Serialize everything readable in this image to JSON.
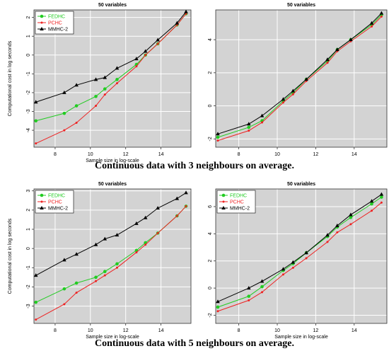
{
  "captions": {
    "top": "Continuous data with 3 neighbours on average.",
    "bottom": "Continuous data with 5 neighbours on average."
  },
  "styles": {
    "FEDHC": {
      "color": "#22cc22",
      "marker": "circle"
    },
    "PCHC": {
      "color": "#ee2222",
      "marker": "dot"
    },
    "MMHC-2": {
      "color": "#000000",
      "marker": "triangle"
    },
    "panel_bg": "#d3d3d3",
    "grid": "#ffffff"
  },
  "chart_data": [
    {
      "type": "line",
      "title": "50 variables",
      "xlabel": "Sample size in log-scale",
      "ylabel": "Computational cost in log seconds",
      "xlim": [
        6.8,
        15.7
      ],
      "ylim": [
        -4.9,
        2.4
      ],
      "xticks": [
        8,
        10,
        12,
        14
      ],
      "yticks": [
        -4,
        -3,
        -2,
        -1,
        0,
        1,
        2
      ],
      "legend": "top-left",
      "grid": true,
      "x": [
        6.91,
        8.52,
        9.21,
        10.31,
        10.82,
        11.51,
        12.61,
        13.12,
        13.82,
        14.91,
        15.42
      ],
      "series": [
        {
          "name": "FEDHC",
          "values": [
            -3.5,
            -3.1,
            -2.7,
            -2.2,
            -1.8,
            -1.3,
            -0.5,
            0.0,
            0.6,
            1.6,
            2.2
          ]
        },
        {
          "name": "PCHC",
          "values": [
            -4.7,
            -4.0,
            -3.6,
            -2.7,
            -2.1,
            -1.5,
            -0.6,
            0.0,
            0.6,
            1.6,
            2.2
          ]
        },
        {
          "name": "MMHC-2",
          "values": [
            -2.5,
            -2.0,
            -1.6,
            -1.3,
            -1.2,
            -0.7,
            -0.2,
            0.2,
            0.8,
            1.7,
            2.3
          ]
        }
      ]
    },
    {
      "type": "line",
      "title": "50 variables",
      "xlabel": "",
      "ylabel": "",
      "xlim": [
        6.8,
        15.7
      ],
      "ylim": [
        -2.5,
        5.8
      ],
      "xticks": [
        8,
        10,
        12,
        14
      ],
      "yticks": [
        -2,
        0,
        2,
        4
      ],
      "legend": "none",
      "grid": true,
      "x": [
        6.91,
        8.52,
        9.21,
        10.31,
        10.82,
        11.51,
        12.61,
        13.12,
        13.82,
        14.91,
        15.42
      ],
      "series": [
        {
          "name": "FEDHC",
          "values": [
            -1.9,
            -1.3,
            -0.9,
            0.3,
            0.8,
            1.6,
            2.7,
            3.4,
            4.0,
            4.9,
            5.5
          ]
        },
        {
          "name": "PCHC",
          "values": [
            -2.1,
            -1.5,
            -1.0,
            0.2,
            0.7,
            1.5,
            2.6,
            3.3,
            3.9,
            4.8,
            5.4
          ]
        },
        {
          "name": "MMHC-2",
          "values": [
            -1.7,
            -1.1,
            -0.6,
            0.4,
            0.9,
            1.6,
            2.8,
            3.4,
            4.0,
            5.0,
            5.6
          ]
        }
      ]
    },
    {
      "type": "line",
      "title": "50 variables",
      "xlabel": "Sample size in log-scale",
      "ylabel": "Computational cost in log seconds",
      "xlim": [
        6.8,
        15.7
      ],
      "ylim": [
        -3.9,
        3.1
      ],
      "xticks": [
        8,
        10,
        12,
        14
      ],
      "yticks": [
        -3,
        -2,
        -1,
        0,
        1,
        2,
        3
      ],
      "legend": "top-left",
      "grid": true,
      "x": [
        6.91,
        8.52,
        9.21,
        10.31,
        10.82,
        11.51,
        12.61,
        13.12,
        13.82,
        14.91,
        15.42
      ],
      "series": [
        {
          "name": "FEDHC",
          "values": [
            -2.8,
            -2.1,
            -1.8,
            -1.5,
            -1.2,
            -0.8,
            -0.1,
            0.3,
            0.8,
            1.7,
            2.2
          ]
        },
        {
          "name": "PCHC",
          "values": [
            -3.7,
            -2.9,
            -2.3,
            -1.7,
            -1.4,
            -1.0,
            -0.2,
            0.2,
            0.8,
            1.7,
            2.2
          ]
        },
        {
          "name": "MMHC-2",
          "values": [
            -1.4,
            -0.6,
            -0.3,
            0.2,
            0.5,
            0.7,
            1.3,
            1.6,
            2.1,
            2.6,
            2.9
          ]
        }
      ]
    },
    {
      "type": "line",
      "title": "50 variables",
      "xlabel": "Sample size in log-scale",
      "ylabel": "",
      "xlim": [
        6.8,
        15.7
      ],
      "ylim": [
        -2.6,
        7.3
      ],
      "xticks": [
        8,
        10,
        12,
        14
      ],
      "yticks": [
        -2,
        0,
        2,
        4,
        6
      ],
      "legend": "top-left",
      "grid": true,
      "x": [
        6.91,
        8.52,
        9.21,
        10.31,
        10.82,
        11.51,
        12.61,
        13.12,
        13.82,
        14.91,
        15.42
      ],
      "series": [
        {
          "name": "FEDHC",
          "values": [
            -1.4,
            -0.6,
            0.1,
            1.3,
            1.8,
            2.6,
            3.8,
            4.5,
            5.2,
            6.2,
            6.7
          ]
        },
        {
          "name": "PCHC",
          "values": [
            -1.7,
            -0.9,
            -0.3,
            1.0,
            1.5,
            2.2,
            3.4,
            4.1,
            4.7,
            5.7,
            6.3
          ]
        },
        {
          "name": "MMHC-2",
          "values": [
            -1.0,
            0.0,
            0.5,
            1.4,
            1.9,
            2.6,
            3.9,
            4.6,
            5.4,
            6.4,
            6.9
          ]
        }
      ]
    }
  ]
}
